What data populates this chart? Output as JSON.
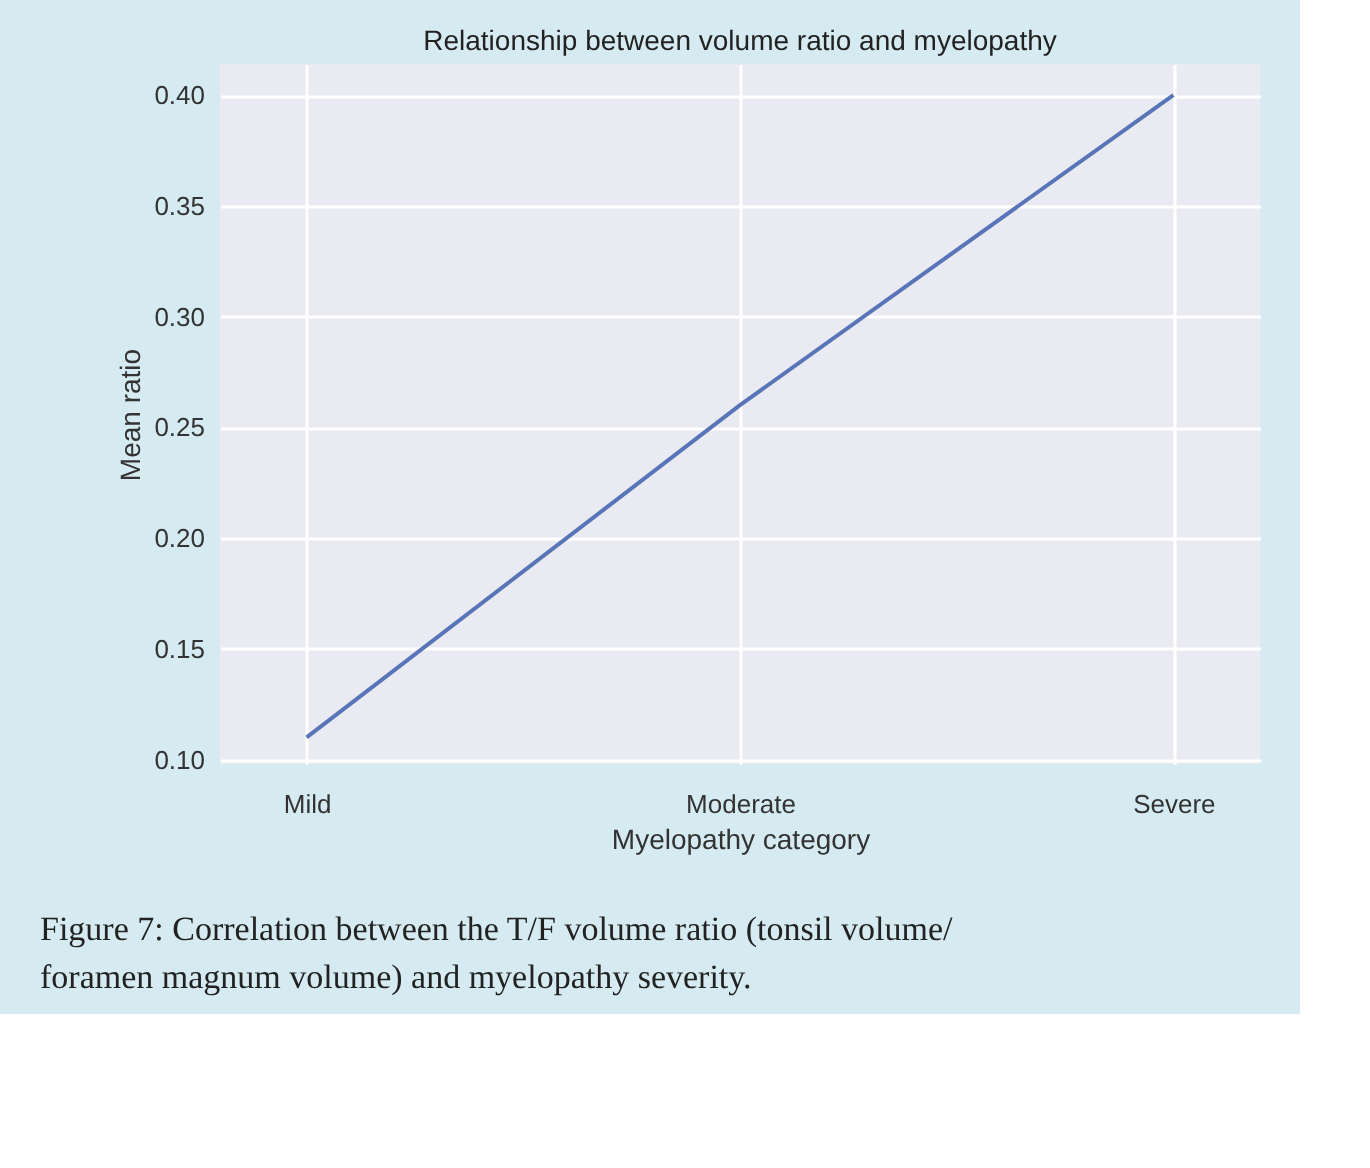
{
  "chart_data": {
    "type": "line",
    "title": "Relationship between volume ratio and myelopathy",
    "xlabel": "Myelopathy category",
    "ylabel": "Mean ratio",
    "categories": [
      "Mild",
      "Moderate",
      "Severe"
    ],
    "series": [
      {
        "color": "#5875b8",
        "values": [
          0.11,
          0.26,
          0.4
        ]
      }
    ],
    "ylim": [
      0.098,
      0.414
    ],
    "yticks": [
      {
        "value": 0.1,
        "label": "0.10"
      },
      0.15,
      {
        "value": 0.2,
        "label": "0.20"
      },
      0.25,
      {
        "value": 0.3,
        "label": "0.30"
      },
      0.35,
      {
        "value": 0.4,
        "label": "0.40"
      }
    ],
    "grid": true,
    "line_style": "solid",
    "marker": "none",
    "annotations": [
      "Figure 7: Correlation between the T/F volume ratio (tonsil volume/ foramen magnum volume) and myelopathy severity."
    ]
  }
}
